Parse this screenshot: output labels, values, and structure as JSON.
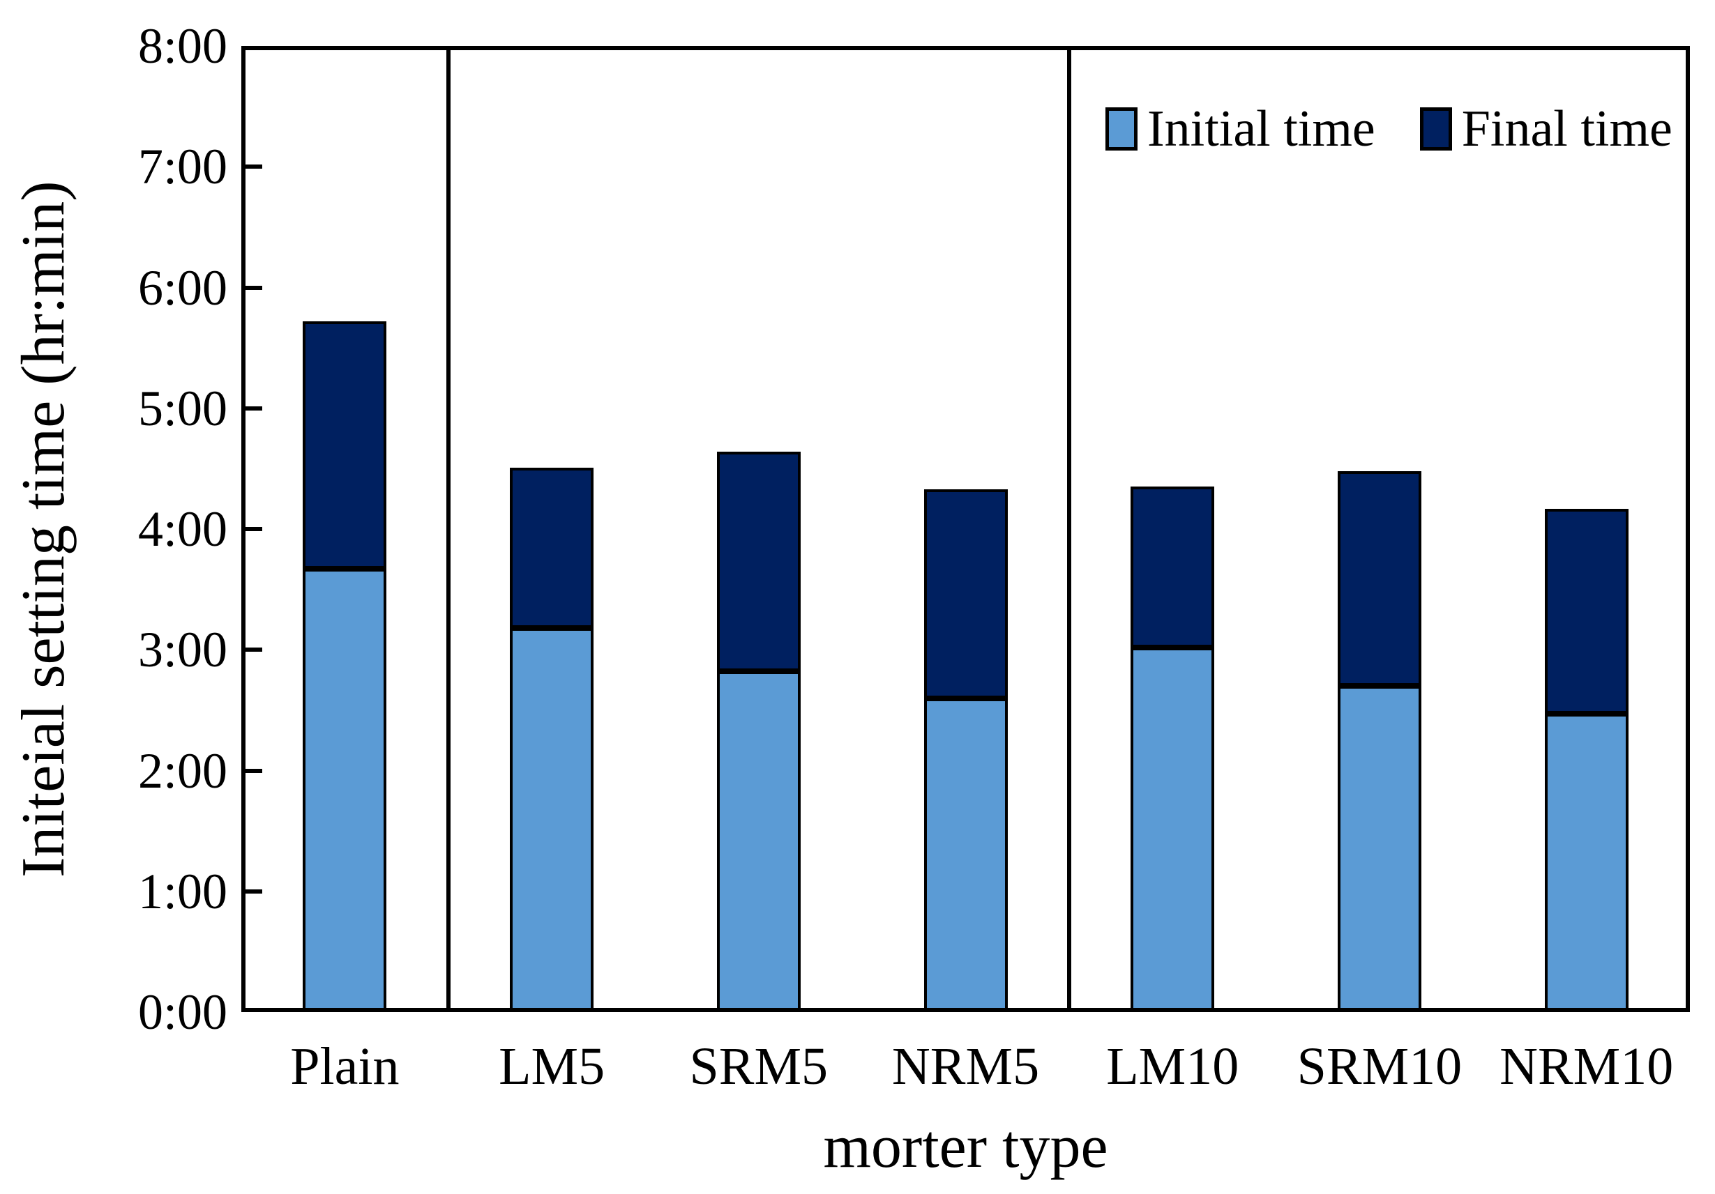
{
  "chart_data": {
    "type": "bar",
    "stacked": true,
    "title": "",
    "xlabel": "morter type",
    "ylabel": "Initeial setting time (hr:min)",
    "categories": [
      "Plain",
      "LM5",
      "SRM5",
      "NRM5",
      "LM10",
      "SRM10",
      "NRM10"
    ],
    "series": [
      {
        "name": "Initial time",
        "color": "#5B9BD5",
        "values_hours": [
          3.67,
          3.18,
          2.82,
          2.6,
          3.02,
          2.7,
          2.47
        ],
        "values_hrmin": [
          "3:40",
          "3:11",
          "2:49",
          "2:36",
          "3:01",
          "2:42",
          "2:28"
        ]
      },
      {
        "name": "Final time",
        "color": "#002060",
        "values_hours": [
          5.72,
          4.51,
          4.64,
          4.33,
          4.35,
          4.48,
          4.17
        ],
        "values_hrmin": [
          "5:43",
          "4:31",
          "4:38",
          "4:20",
          "4:21",
          "4:29",
          "4:10"
        ]
      }
    ],
    "y_axis": {
      "min_hours": 0,
      "max_hours": 8,
      "tick_interval_hours": 1,
      "tick_labels": [
        "0:00",
        "1:00",
        "2:00",
        "3:00",
        "4:00",
        "5:00",
        "6:00",
        "7:00",
        "8:00"
      ]
    },
    "group_separators_after": [
      "Plain",
      "NRM5"
    ],
    "legend": {
      "position": "top-right-inside",
      "items": [
        "Initial time",
        "Final time"
      ]
    },
    "colors": {
      "bar_border": "#000000",
      "axis": "#000000",
      "background": "#ffffff"
    },
    "grid": "off",
    "stacking_note": "dark segment spans from initial time up to final time; bar top equals final time"
  }
}
